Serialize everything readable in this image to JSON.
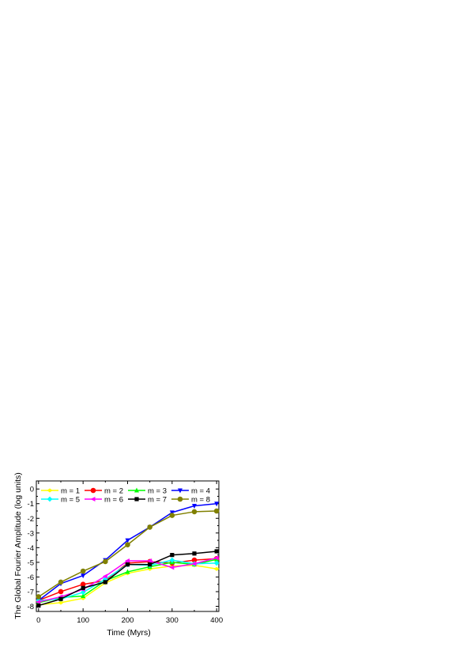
{
  "chart_data": {
    "type": "line",
    "title": "",
    "xlabel": "Time (Myrs)",
    "ylabel": "The Global Fourier Amplitude (log units)",
    "xlim": [
      -5,
      405
    ],
    "ylim": [
      -8.35,
      0.55
    ],
    "xticks": [
      0,
      100,
      200,
      300,
      400
    ],
    "xtick_labels": [
      "0",
      "100",
      "200",
      "300",
      "400"
    ],
    "yticks": [
      0,
      -1,
      -2,
      -3,
      -4,
      -5,
      -6,
      -7,
      -8
    ],
    "ytick_labels": [
      "0",
      "-1",
      "-2",
      "-3",
      "-4",
      "-5",
      "-6",
      "-7",
      "-8"
    ],
    "grid": false,
    "legend_position": "top",
    "x": [
      0,
      50,
      100,
      150,
      200,
      250,
      300,
      350,
      400
    ],
    "series": [
      {
        "name": "m = 1",
        "color": "#ffff00",
        "marker": "diamond-left",
        "values": [
          -7.9,
          -7.75,
          -7.45,
          -6.4,
          -5.75,
          -5.45,
          -5.25,
          -5.2,
          -5.45
        ]
      },
      {
        "name": "m = 2",
        "color": "#ff0000",
        "marker": "circle",
        "values": [
          -7.6,
          -7.0,
          -6.5,
          -6.25,
          -5.05,
          -4.95,
          -5.05,
          -4.85,
          -4.75
        ]
      },
      {
        "name": "m = 3",
        "color": "#00ff00",
        "marker": "triangle-up",
        "values": [
          -7.75,
          -7.4,
          -7.3,
          -6.25,
          -5.65,
          -5.3,
          -5.0,
          -5.15,
          -4.8
        ]
      },
      {
        "name": "m = 4",
        "color": "#0000ff",
        "marker": "triangle-down",
        "values": [
          -7.6,
          -6.45,
          -5.9,
          -4.85,
          -3.5,
          -2.6,
          -1.6,
          -1.15,
          -1.0
        ]
      },
      {
        "name": "m = 5",
        "color": "#00ffff",
        "marker": "diamond",
        "values": [
          -7.6,
          -7.5,
          -7.05,
          -6.15,
          -5.15,
          -5.2,
          -4.85,
          -5.1,
          -5.05
        ]
      },
      {
        "name": "m = 6",
        "color": "#ff00ff",
        "marker": "triangle-left",
        "values": [
          -7.7,
          -7.35,
          -6.85,
          -5.95,
          -4.9,
          -4.9,
          -5.35,
          -5.1,
          -4.7
        ]
      },
      {
        "name": "m = 7",
        "color": "#000000",
        "marker": "square",
        "values": [
          -7.95,
          -7.5,
          -6.75,
          -6.35,
          -5.15,
          -5.15,
          -4.5,
          -4.4,
          -4.25
        ]
      },
      {
        "name": "m = 8",
        "color": "#808000",
        "marker": "circle",
        "values": [
          -7.35,
          -6.35,
          -5.6,
          -4.95,
          -3.8,
          -2.6,
          -1.8,
          -1.55,
          -1.5
        ]
      }
    ]
  }
}
